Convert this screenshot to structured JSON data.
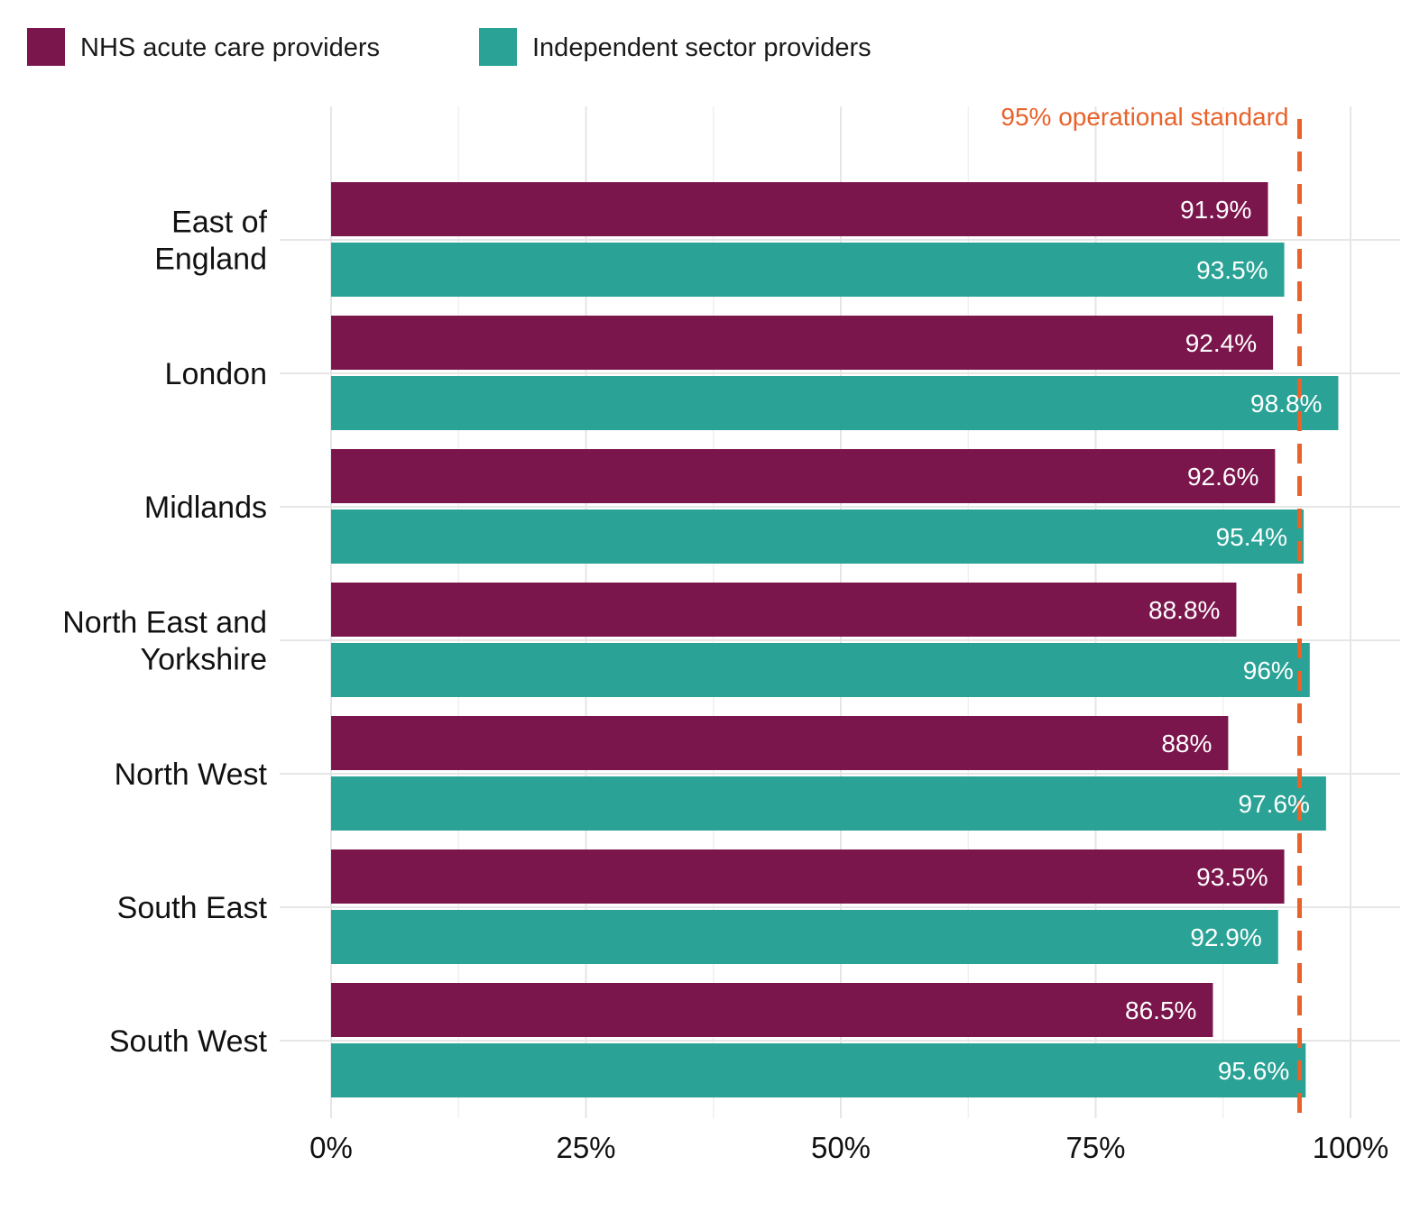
{
  "chart_data": {
    "type": "bar",
    "orientation": "horizontal",
    "categories": [
      [
        "East of",
        "England"
      ],
      [
        "London"
      ],
      [
        "Midlands"
      ],
      [
        "North East and",
        "Yorkshire"
      ],
      [
        "North West"
      ],
      [
        "South East"
      ],
      [
        "South West"
      ]
    ],
    "series": [
      {
        "name": "NHS acute care providers",
        "color": "#7b164c",
        "values": [
          91.9,
          92.4,
          92.6,
          88.8,
          88.0,
          93.5,
          86.5
        ],
        "labels": [
          "91.9%",
          "92.4%",
          "92.6%",
          "88.8%",
          "88%",
          "93.5%",
          "86.5%"
        ]
      },
      {
        "name": "Independent sector providers",
        "color": "#2aa396",
        "values": [
          93.5,
          98.8,
          95.4,
          96.0,
          97.6,
          92.9,
          95.6
        ],
        "labels": [
          "93.5%",
          "98.8%",
          "95.4%",
          "96%",
          "97.6%",
          "92.9%",
          "95.6%"
        ]
      }
    ],
    "xlim": [
      0,
      100
    ],
    "x_ticks": [
      0,
      25,
      50,
      75,
      100
    ],
    "x_tick_labels": [
      "0%",
      "25%",
      "50%",
      "75%",
      "100%"
    ],
    "reference_line": {
      "value": 95,
      "label": "95% operational standard",
      "color": "#e8622a",
      "style": "dashed"
    },
    "grid": true,
    "legend_position": "top-left",
    "title": "",
    "xlabel": "",
    "ylabel": ""
  }
}
